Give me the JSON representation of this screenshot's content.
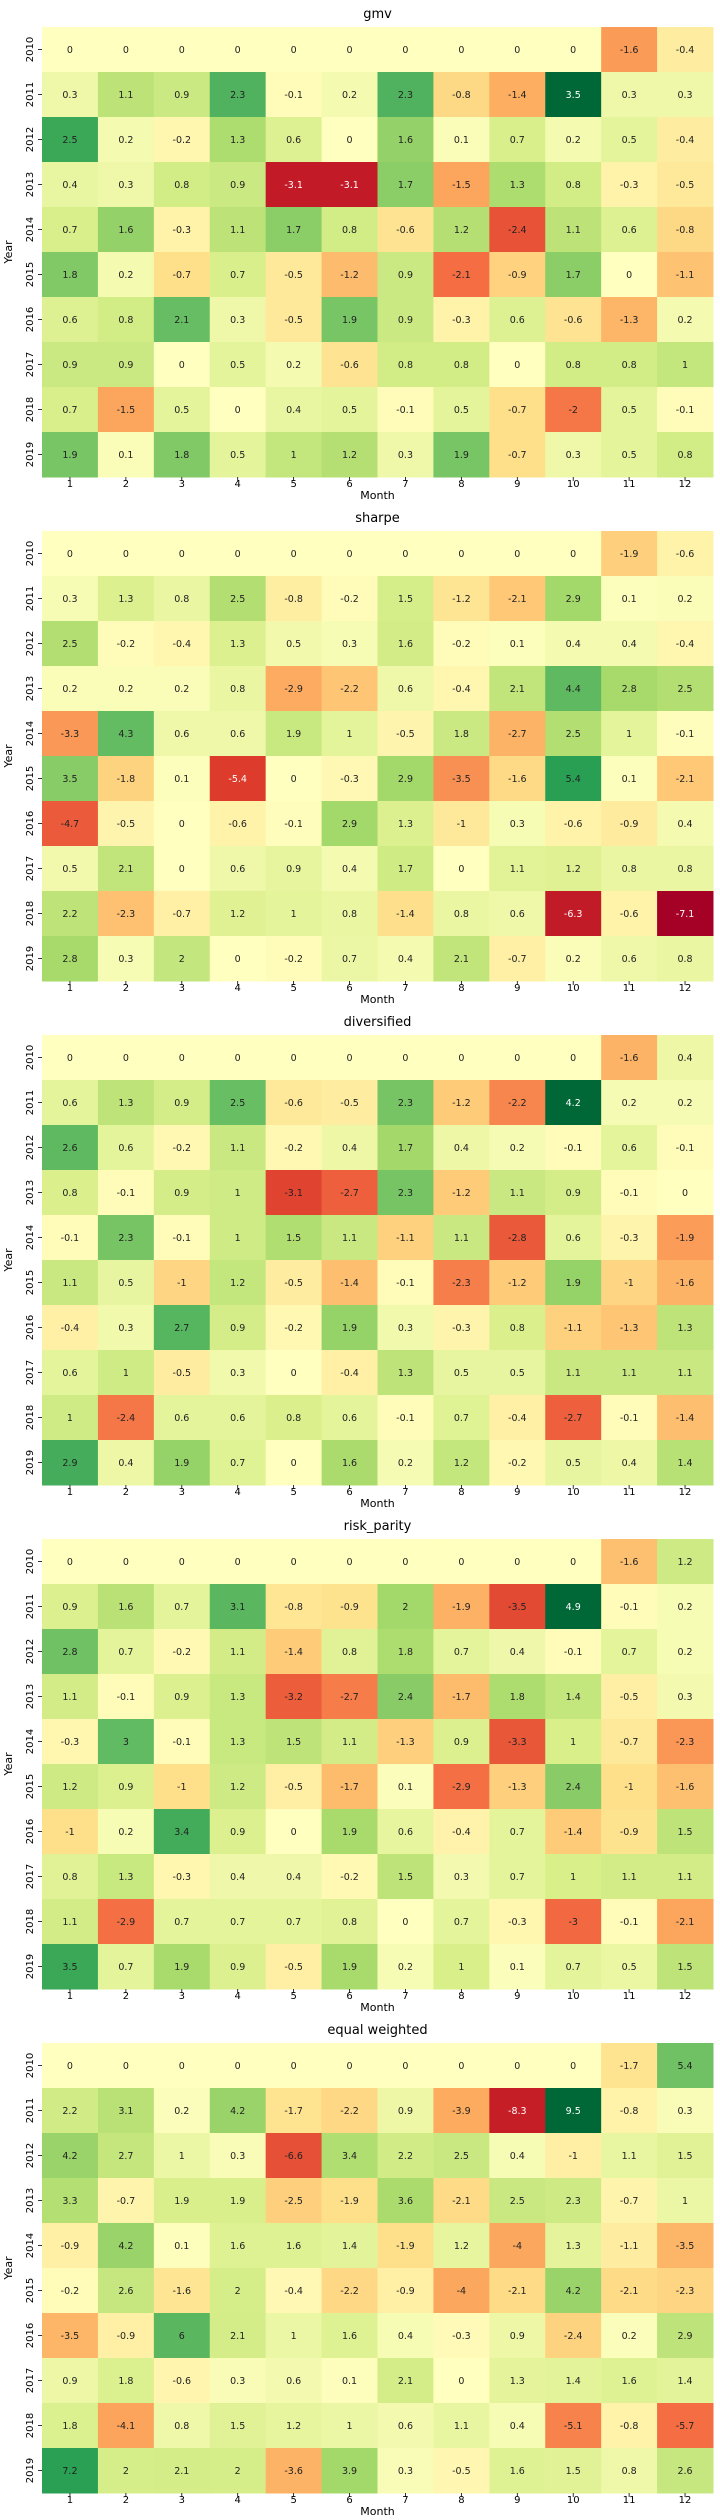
{
  "chart_data": [
    {
      "type": "heatmap",
      "title": "gmv",
      "xlabel": "Month",
      "ylabel": "Year",
      "x_categories": [
        "1",
        "2",
        "3",
        "4",
        "5",
        "6",
        "7",
        "8",
        "9",
        "10",
        "11",
        "12"
      ],
      "y_categories": [
        "2010",
        "2011",
        "2012",
        "2013",
        "2014",
        "2015",
        "2016",
        "2017",
        "2018",
        "2019"
      ],
      "values": [
        [
          0,
          0,
          0,
          0,
          0,
          0,
          0,
          0,
          0,
          0,
          -1.6,
          -0.4
        ],
        [
          0.3,
          1.1,
          0.9,
          2.3,
          -0.1,
          0.2,
          2.3,
          -0.8,
          -1.4,
          3.5,
          0.3,
          0.3
        ],
        [
          2.5,
          0.2,
          -0.2,
          1.3,
          0.6,
          0,
          1.6,
          0.1,
          0.7,
          0.2,
          0.5,
          -0.4
        ],
        [
          0.4,
          0.3,
          0.8,
          0.9,
          -3.1,
          -3.1,
          1.7,
          -1.5,
          1.3,
          0.8,
          -0.3,
          -0.5
        ],
        [
          0.7,
          1.6,
          -0.3,
          1.1,
          1.7,
          0.8,
          -0.6,
          1.2,
          -2.4,
          1.1,
          0.6,
          -0.8
        ],
        [
          1.8,
          0.2,
          -0.7,
          0.7,
          -0.5,
          -1.2,
          0.9,
          -2.1,
          -0.9,
          1.7,
          0,
          -1.1
        ],
        [
          0.6,
          0.8,
          2.1,
          0.3,
          -0.5,
          1.9,
          0.9,
          -0.3,
          0.6,
          -0.6,
          -1.3,
          0.2
        ],
        [
          0.9,
          0.9,
          0,
          0.5,
          0.2,
          -0.6,
          0.8,
          0.8,
          0,
          0.8,
          0.8,
          1
        ],
        [
          0.7,
          -1.5,
          0.5,
          0,
          0.4,
          0.5,
          -0.1,
          0.5,
          -0.7,
          -2,
          0.5,
          -0.1
        ],
        [
          1.9,
          0.1,
          1.8,
          0.5,
          1,
          1.2,
          0.3,
          1.9,
          -0.7,
          0.3,
          0.5,
          0.8
        ]
      ]
    },
    {
      "type": "heatmap",
      "title": "sharpe",
      "xlabel": "Month",
      "ylabel": "Year",
      "x_categories": [
        "1",
        "2",
        "3",
        "4",
        "5",
        "6",
        "7",
        "8",
        "9",
        "10",
        "11",
        "12"
      ],
      "y_categories": [
        "2010",
        "2011",
        "2012",
        "2013",
        "2014",
        "2015",
        "2016",
        "2017",
        "2018",
        "2019"
      ],
      "values": [
        [
          0,
          0,
          0,
          0,
          0,
          0,
          0,
          0,
          0,
          0,
          -1.9,
          -0.6
        ],
        [
          0.3,
          1.3,
          0.8,
          2.5,
          -0.8,
          -0.2,
          1.5,
          -1.2,
          -2.1,
          2.9,
          0.1,
          0.2
        ],
        [
          2.5,
          -0.2,
          -0.4,
          1.3,
          0.5,
          0.3,
          1.6,
          -0.2,
          0.1,
          0.4,
          0.4,
          -0.4
        ],
        [
          0.2,
          0.2,
          0.2,
          0.8,
          -2.9,
          -2.2,
          0.6,
          -0.4,
          2.1,
          4.4,
          2.8,
          2.5
        ],
        [
          -3.3,
          4.3,
          0.6,
          0.6,
          1.9,
          1,
          -0.5,
          1.8,
          -2.7,
          2.5,
          1,
          -0.1
        ],
        [
          3.5,
          -1.8,
          0.1,
          -5.4,
          0,
          -0.3,
          2.9,
          -3.5,
          -1.6,
          5.4,
          0.1,
          -2.1
        ],
        [
          -4.7,
          -0.5,
          0,
          -0.6,
          -0.1,
          2.9,
          1.3,
          -1,
          0.3,
          -0.6,
          -0.9,
          0.4
        ],
        [
          0.5,
          2.1,
          0,
          0.6,
          0.9,
          0.4,
          1.7,
          0,
          1.1,
          1.2,
          0.8,
          0.8
        ],
        [
          2.2,
          -2.3,
          -0.7,
          1.2,
          1,
          0.8,
          -1.4,
          0.8,
          0.6,
          -6.3,
          -0.6,
          -7.1
        ],
        [
          2.8,
          0.3,
          2,
          0,
          -0.2,
          0.7,
          0.4,
          2.1,
          -0.7,
          0.2,
          0.6,
          0.8
        ]
      ]
    },
    {
      "type": "heatmap",
      "title": "diversified",
      "xlabel": "Month",
      "ylabel": "Year",
      "x_categories": [
        "1",
        "2",
        "3",
        "4",
        "5",
        "6",
        "7",
        "8",
        "9",
        "10",
        "11",
        "12"
      ],
      "y_categories": [
        "2010",
        "2011",
        "2012",
        "2013",
        "2014",
        "2015",
        "2016",
        "2017",
        "2018",
        "2019"
      ],
      "values": [
        [
          0,
          0,
          0,
          0,
          0,
          0,
          0,
          0,
          0,
          0,
          -1.6,
          0.4
        ],
        [
          0.6,
          1.3,
          0.9,
          2.5,
          -0.6,
          -0.5,
          2.3,
          -1.2,
          -2.2,
          4.2,
          0.2,
          0.2
        ],
        [
          2.6,
          0.6,
          -0.2,
          1.1,
          -0.2,
          0.4,
          1.7,
          0.4,
          0.2,
          -0.1,
          0.6,
          -0.1
        ],
        [
          0.8,
          -0.1,
          0.9,
          1,
          -3.1,
          -2.7,
          2.3,
          -1.2,
          1.1,
          0.9,
          -0.1,
          0
        ],
        [
          -0.1,
          2.3,
          -0.1,
          1,
          1.5,
          1.1,
          -1.1,
          1.1,
          -2.8,
          0.6,
          -0.3,
          -1.9
        ],
        [
          1.1,
          0.5,
          -1,
          1.2,
          -0.5,
          -1.4,
          -0.1,
          -2.3,
          -1.2,
          1.9,
          -1,
          -1.6
        ],
        [
          -0.4,
          0.3,
          2.7,
          0.9,
          -0.2,
          1.9,
          0.3,
          -0.3,
          0.8,
          -1.1,
          -1.3,
          1.3
        ],
        [
          0.6,
          1,
          -0.5,
          0.3,
          0,
          -0.4,
          1.3,
          0.5,
          0.5,
          1.1,
          1.1,
          1.1
        ],
        [
          1,
          -2.4,
          0.6,
          0.6,
          0.8,
          0.6,
          -0.1,
          0.7,
          -0.4,
          -2.7,
          -0.1,
          -1.4
        ],
        [
          2.9,
          0.4,
          1.9,
          0.7,
          0,
          1.6,
          0.2,
          1.2,
          -0.2,
          0.5,
          0.4,
          1.4
        ]
      ]
    },
    {
      "type": "heatmap",
      "title": "risk_parity",
      "xlabel": "Month",
      "ylabel": "Year",
      "x_categories": [
        "1",
        "2",
        "3",
        "4",
        "5",
        "6",
        "7",
        "8",
        "9",
        "10",
        "11",
        "12"
      ],
      "y_categories": [
        "2010",
        "2011",
        "2012",
        "2013",
        "2014",
        "2015",
        "2016",
        "2017",
        "2018",
        "2019"
      ],
      "values": [
        [
          0,
          0,
          0,
          0,
          0,
          0,
          0,
          0,
          0,
          0,
          -1.6,
          1.2
        ],
        [
          0.9,
          1.6,
          0.7,
          3.1,
          -0.8,
          -0.9,
          2,
          -1.9,
          -3.5,
          4.9,
          -0.1,
          0.2
        ],
        [
          2.8,
          0.7,
          -0.2,
          1.1,
          -1.4,
          0.8,
          1.8,
          0.7,
          0.4,
          -0.1,
          0.7,
          0.2
        ],
        [
          1.1,
          -0.1,
          0.9,
          1.3,
          -3.2,
          -2.7,
          2.4,
          -1.7,
          1.8,
          1.4,
          -0.5,
          0.3
        ],
        [
          -0.3,
          3,
          -0.1,
          1.3,
          1.5,
          1.1,
          -1.3,
          0.9,
          -3.3,
          1,
          -0.7,
          -2.3
        ],
        [
          1.2,
          0.9,
          -1,
          1.2,
          -0.5,
          -1.7,
          0.1,
          -2.9,
          -1.3,
          2.4,
          -1,
          -1.6
        ],
        [
          -1,
          0.2,
          3.4,
          0.9,
          0,
          1.9,
          0.6,
          -0.4,
          0.7,
          -1.4,
          -0.9,
          1.5
        ],
        [
          0.8,
          1.3,
          -0.3,
          0.4,
          0.4,
          -0.2,
          1.5,
          0.3,
          0.7,
          1,
          1.1,
          1.1
        ],
        [
          1.1,
          -2.9,
          0.7,
          0.7,
          0.7,
          0.8,
          0,
          0.7,
          -0.3,
          -3,
          -0.1,
          -2.1
        ],
        [
          3.5,
          0.7,
          1.9,
          0.9,
          -0.5,
          1.9,
          0.2,
          1,
          0.1,
          0.7,
          0.5,
          1.5
        ]
      ]
    },
    {
      "type": "heatmap",
      "title": "equal weighted",
      "xlabel": "Month",
      "ylabel": "Year",
      "x_categories": [
        "1",
        "2",
        "3",
        "4",
        "5",
        "6",
        "7",
        "8",
        "9",
        "10",
        "11",
        "12"
      ],
      "y_categories": [
        "2010",
        "2011",
        "2012",
        "2013",
        "2014",
        "2015",
        "2016",
        "2017",
        "2018",
        "2019"
      ],
      "values": [
        [
          0,
          0,
          0,
          0,
          0,
          0,
          0,
          0,
          0,
          0,
          -1.7,
          5.4
        ],
        [
          2.2,
          3.1,
          0.2,
          4.2,
          -1.7,
          -2.2,
          0.9,
          -3.9,
          -8.3,
          9.5,
          -0.8,
          0.3
        ],
        [
          4.2,
          2.7,
          1,
          0.3,
          -6.6,
          3.4,
          2.2,
          2.5,
          0.4,
          -1,
          1.1,
          1.5
        ],
        [
          3.3,
          -0.7,
          1.9,
          1.9,
          -2.5,
          -1.9,
          3.6,
          -2.1,
          2.5,
          2.3,
          -0.7,
          1
        ],
        [
          -0.9,
          4.2,
          0.1,
          1.6,
          1.6,
          1.4,
          -1.9,
          1.2,
          -4,
          1.3,
          -1.1,
          -3.5
        ],
        [
          -0.2,
          2.6,
          -1.6,
          2,
          -0.4,
          -2.2,
          -0.9,
          -4,
          -2.1,
          4.2,
          -2.1,
          -2.3
        ],
        [
          -3.5,
          -0.9,
          6,
          2.1,
          1,
          1.6,
          0.4,
          -0.3,
          0.9,
          -2.4,
          0.2,
          2.9
        ],
        [
          0.9,
          1.8,
          -0.6,
          0.3,
          0.6,
          0.1,
          2.1,
          0,
          1.3,
          1.4,
          1.6,
          1.4
        ],
        [
          1.8,
          -4.1,
          0.8,
          1.5,
          1.2,
          1,
          0.6,
          1.1,
          0.4,
          -5.1,
          -0.8,
          -5.7
        ],
        [
          7.2,
          2,
          2.1,
          2,
          -3.6,
          3.9,
          0.3,
          -0.5,
          1.6,
          1.5,
          0.8,
          2.6
        ]
      ]
    }
  ]
}
